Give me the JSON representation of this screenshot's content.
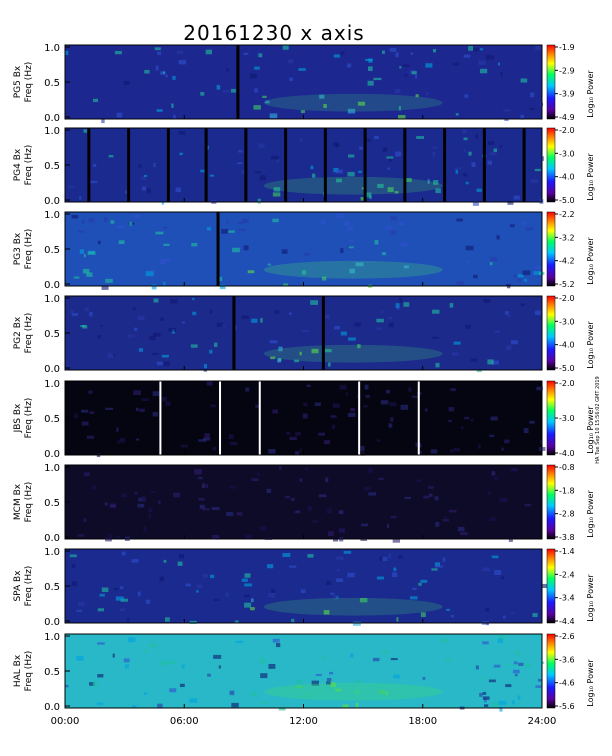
{
  "chart_data": {
    "type": "heatmap",
    "title": "20161230 x axis",
    "side_note": "HA Tue Sep 10 15:56:02 GMT 2019",
    "x_ticks": [
      "00:00",
      "06:00",
      "12:00",
      "18:00",
      "24:00"
    ],
    "xlim_hours": [
      0,
      24
    ],
    "ylabel": "Freq (Hz)",
    "y_ticks": [
      "0.0",
      "0.5",
      "1.0"
    ],
    "ylim": [
      0,
      1.0
    ],
    "colorbar_label": "Log₁₀ Power",
    "panels": [
      {
        "station": "PG5 Bx",
        "cb_ticks": [
          "-1.9",
          "-2.9",
          "-3.9",
          "-4.9"
        ],
        "bg": "#1c2890",
        "dark_lines_h": [
          8.7
        ],
        "light_lines_h": [],
        "intensity": 0.55
      },
      {
        "station": "PG4 Bx",
        "cb_ticks": [
          "-2.0",
          "-3.0",
          "-4.0",
          "-5.0"
        ],
        "bg": "#1a2a8e",
        "dark_lines_h": [
          1.2,
          3.2,
          5.2,
          7.1,
          9.1,
          11.1,
          13.1,
          15.1,
          17.1,
          19.1,
          21.1,
          23.1
        ],
        "light_lines_h": [],
        "intensity": 0.65
      },
      {
        "station": "PG3 Bx",
        "cb_ticks": [
          "-2.2",
          "-3.2",
          "-4.2",
          "-5.2"
        ],
        "bg": "#1e50b8",
        "dark_lines_h": [
          7.7
        ],
        "light_lines_h": [],
        "intensity": 0.75
      },
      {
        "station": "PG2 Bx",
        "cb_ticks": [
          "-2.0",
          "-3.0",
          "-4.0",
          "-5.0"
        ],
        "bg": "#1c2a8c",
        "dark_lines_h": [
          8.5,
          13.0
        ],
        "light_lines_h": [],
        "intensity": 0.6
      },
      {
        "station": "JBS Bx",
        "cb_ticks": [
          "-2.0",
          "-3.0",
          "-4.0"
        ],
        "bg": "#050512",
        "dark_lines_h": [],
        "light_lines_h": [
          4.8,
          7.8,
          9.8,
          14.8,
          17.8
        ],
        "intensity": 0.25
      },
      {
        "station": "MCM Bx",
        "cb_ticks": [
          "-0.8",
          "-1.8",
          "-2.8",
          "-3.8"
        ],
        "bg": "#0e0b28",
        "dark_lines_h": [],
        "light_lines_h": [],
        "intensity": 0.3
      },
      {
        "station": "SPA Bx",
        "cb_ticks": [
          "-1.4",
          "-2.4",
          "-3.4",
          "-4.4"
        ],
        "bg": "#1a2a8e",
        "dark_lines_h": [],
        "light_lines_h": [],
        "intensity": 0.6
      },
      {
        "station": "HAL Bx",
        "cb_ticks": [
          "-2.6",
          "-3.6",
          "-4.6",
          "-5.6"
        ],
        "bg": "#28b8c8",
        "dark_lines_h": [],
        "light_lines_h": [],
        "intensity": 0.9
      }
    ]
  }
}
